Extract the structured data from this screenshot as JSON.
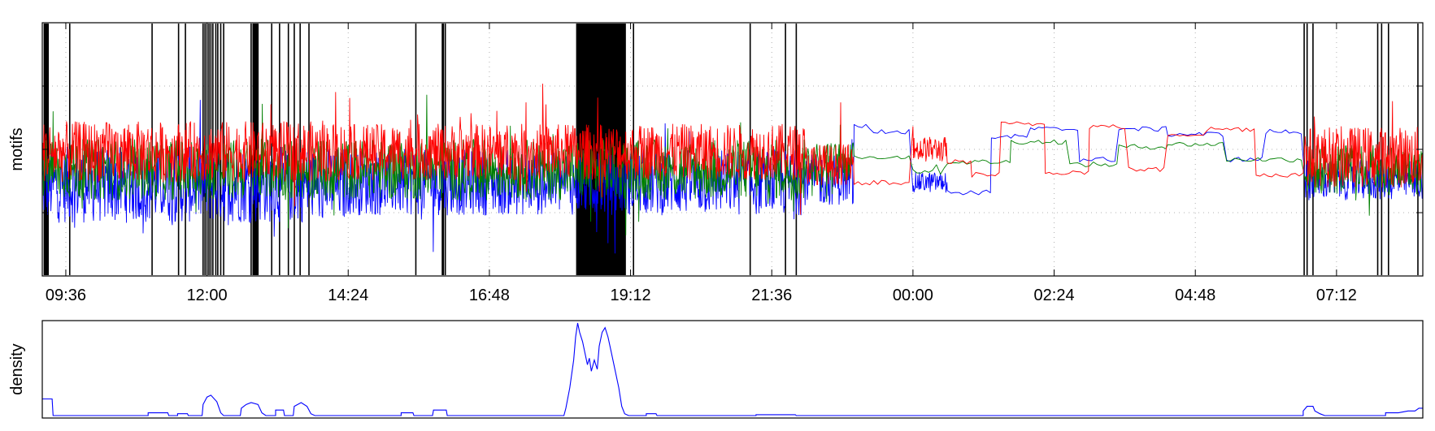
{
  "colors": {
    "frame": "#000000",
    "grid": "#b0b0b0",
    "blue": "#0000ff",
    "green": "#008000",
    "red": "#ff0000",
    "events": "#000000",
    "density": "#0000ff"
  },
  "chart_data": [
    {
      "type": "line",
      "ylabel": "motifs",
      "xlabel": "",
      "x_ticks": [
        "09:36",
        "12:00",
        "14:24",
        "16:48",
        "19:12",
        "21:36",
        "00:00",
        "02:24",
        "04:48",
        "07:12"
      ],
      "x_tick_minutes": [
        576,
        720,
        864,
        1008,
        1152,
        1296,
        1440,
        1584,
        1728,
        1872
      ],
      "xlim_minutes": [
        552,
        1960
      ],
      "ylim": [
        0,
        1
      ],
      "y_tick_fractions": [
        0.25,
        0.5,
        0.75
      ],
      "grid": true,
      "event_minutes": [
        554,
        555,
        556,
        557,
        558,
        580,
        664,
        691,
        698,
        716,
        718,
        720,
        722,
        724,
        726,
        729,
        731,
        734,
        737,
        765,
        767,
        768,
        769,
        770,
        771,
        772,
        786,
        794,
        803,
        809,
        815,
        824,
        933,
        960,
        961,
        963,
        963,
        1141,
        1145,
        1155,
        1274,
        1310,
        1321,
        1839,
        1842,
        1848,
        1914,
        1918,
        1925,
        1955
      ],
      "dense_event_range_minutes": [
        1097,
        1147
      ],
      "series": [
        {
          "color": "blue",
          "segments": [
            {
              "from": 552,
              "to": 860,
              "level": 0.36,
              "noise": 0.15
            },
            {
              "from": 860,
              "to": 1330,
              "level": 0.37,
              "noise": 0.13
            },
            {
              "from": 1330,
              "to": 1380,
              "level": 0.38,
              "noise": 0.1
            },
            {
              "from": 1380,
              "to": 1400,
              "level": 0.59,
              "noise": 0.01
            },
            {
              "from": 1400,
              "to": 1440,
              "level": 0.57,
              "noise": 0.01
            },
            {
              "from": 1440,
              "to": 1475,
              "level": 0.37,
              "noise": 0.04
            },
            {
              "from": 1475,
              "to": 1520,
              "level": 0.33,
              "noise": 0.01
            },
            {
              "from": 1520,
              "to": 1560,
              "level": 0.55,
              "noise": 0.01
            },
            {
              "from": 1560,
              "to": 1610,
              "level": 0.58,
              "noise": 0.01
            },
            {
              "from": 1610,
              "to": 1650,
              "level": 0.46,
              "noise": 0.01
            },
            {
              "from": 1650,
              "to": 1700,
              "level": 0.58,
              "noise": 0.01
            },
            {
              "from": 1700,
              "to": 1760,
              "level": 0.56,
              "noise": 0.01
            },
            {
              "from": 1760,
              "to": 1800,
              "level": 0.46,
              "noise": 0.01
            },
            {
              "from": 1800,
              "to": 1840,
              "level": 0.57,
              "noise": 0.01
            },
            {
              "from": 1840,
              "to": 1960,
              "level": 0.38,
              "noise": 0.08
            }
          ]
        },
        {
          "color": "green",
          "segments": [
            {
              "from": 552,
              "to": 1330,
              "level": 0.42,
              "noise": 0.12
            },
            {
              "from": 1330,
              "to": 1380,
              "level": 0.45,
              "noise": 0.08
            },
            {
              "from": 1380,
              "to": 1440,
              "level": 0.47,
              "noise": 0.01
            },
            {
              "from": 1440,
              "to": 1475,
              "level": 0.42,
              "noise": 0.02
            },
            {
              "from": 1475,
              "to": 1540,
              "level": 0.45,
              "noise": 0.01
            },
            {
              "from": 1540,
              "to": 1600,
              "level": 0.53,
              "noise": 0.01
            },
            {
              "from": 1600,
              "to": 1650,
              "level": 0.44,
              "noise": 0.01
            },
            {
              "from": 1650,
              "to": 1700,
              "level": 0.51,
              "noise": 0.01
            },
            {
              "from": 1700,
              "to": 1760,
              "level": 0.52,
              "noise": 0.01
            },
            {
              "from": 1760,
              "to": 1840,
              "level": 0.46,
              "noise": 0.01
            },
            {
              "from": 1840,
              "to": 1960,
              "level": 0.42,
              "noise": 0.1
            }
          ]
        },
        {
          "color": "red",
          "segments": [
            {
              "from": 552,
              "to": 860,
              "level": 0.49,
              "noise": 0.12
            },
            {
              "from": 860,
              "to": 1330,
              "level": 0.49,
              "noise": 0.11
            },
            {
              "from": 1330,
              "to": 1380,
              "level": 0.44,
              "noise": 0.08
            },
            {
              "from": 1380,
              "to": 1440,
              "level": 0.37,
              "noise": 0.01
            },
            {
              "from": 1440,
              "to": 1475,
              "level": 0.5,
              "noise": 0.05
            },
            {
              "from": 1475,
              "to": 1500,
              "level": 0.45,
              "noise": 0.01
            },
            {
              "from": 1500,
              "to": 1530,
              "level": 0.4,
              "noise": 0.01
            },
            {
              "from": 1530,
              "to": 1575,
              "level": 0.6,
              "noise": 0.01
            },
            {
              "from": 1575,
              "to": 1620,
              "level": 0.41,
              "noise": 0.01
            },
            {
              "from": 1620,
              "to": 1660,
              "level": 0.59,
              "noise": 0.01
            },
            {
              "from": 1660,
              "to": 1700,
              "level": 0.42,
              "noise": 0.01
            },
            {
              "from": 1700,
              "to": 1740,
              "level": 0.56,
              "noise": 0.01
            },
            {
              "from": 1740,
              "to": 1790,
              "level": 0.58,
              "noise": 0.01
            },
            {
              "from": 1790,
              "to": 1840,
              "level": 0.4,
              "noise": 0.01
            },
            {
              "from": 1840,
              "to": 1960,
              "level": 0.47,
              "noise": 0.12
            }
          ]
        }
      ]
    },
    {
      "type": "line",
      "ylabel": "density",
      "xlabel": "",
      "xlim_minutes": [
        552,
        1960
      ],
      "ylim": [
        0,
        1
      ],
      "series": [
        {
          "color": "density",
          "points_minutes": [
            552,
            0.18
          ],
          "points": [
            [
              552,
              0.18
            ],
            [
              562,
              0.18
            ],
            [
              563,
              0.0
            ],
            [
              660,
              0.0
            ],
            [
              660,
              0.03
            ],
            [
              680,
              0.03
            ],
            [
              681,
              0.0
            ],
            [
              690,
              0.0
            ],
            [
              690,
              0.02
            ],
            [
              700,
              0.02
            ],
            [
              701,
              0.0
            ],
            [
              715,
              0.0
            ],
            [
              716,
              0.12
            ],
            [
              720,
              0.2
            ],
            [
              724,
              0.22
            ],
            [
              730,
              0.15
            ],
            [
              734,
              0.03
            ],
            [
              737,
              0.0
            ],
            [
              754,
              0.0
            ],
            [
              755,
              0.08
            ],
            [
              760,
              0.12
            ],
            [
              765,
              0.14
            ],
            [
              772,
              0.12
            ],
            [
              776,
              0.03
            ],
            [
              780,
              0.0
            ],
            [
              790,
              0.0
            ],
            [
              790,
              0.06
            ],
            [
              798,
              0.06
            ],
            [
              799,
              0.0
            ],
            [
              808,
              0.0
            ],
            [
              809,
              0.1
            ],
            [
              816,
              0.14
            ],
            [
              822,
              0.1
            ],
            [
              826,
              0.02
            ],
            [
              830,
              0.0
            ],
            [
              918,
              0.0
            ],
            [
              918,
              0.03
            ],
            [
              930,
              0.03
            ],
            [
              931,
              0.0
            ],
            [
              950,
              0.0
            ],
            [
              951,
              0.06
            ],
            [
              964,
              0.06
            ],
            [
              965,
              0.0
            ],
            [
              1084,
              0.0
            ],
            [
              1086,
              0.08
            ],
            [
              1090,
              0.3
            ],
            [
              1094,
              0.6
            ],
            [
              1096,
              0.85
            ],
            [
              1098,
              1.0
            ],
            [
              1100,
              0.9
            ],
            [
              1103,
              0.8
            ],
            [
              1106,
              0.65
            ],
            [
              1108,
              0.55
            ],
            [
              1110,
              0.62
            ],
            [
              1112,
              0.48
            ],
            [
              1115,
              0.6
            ],
            [
              1118,
              0.5
            ],
            [
              1120,
              0.75
            ],
            [
              1123,
              0.9
            ],
            [
              1126,
              0.95
            ],
            [
              1129,
              0.85
            ],
            [
              1132,
              0.7
            ],
            [
              1136,
              0.5
            ],
            [
              1140,
              0.3
            ],
            [
              1143,
              0.1
            ],
            [
              1146,
              0.02
            ],
            [
              1150,
              0.0
            ],
            [
              1168,
              0.0
            ],
            [
              1168,
              0.02
            ],
            [
              1178,
              0.02
            ],
            [
              1179,
              0.0
            ],
            [
              1280,
              0.0
            ],
            [
              1280,
              0.01
            ],
            [
              1320,
              0.01
            ],
            [
              1321,
              0.0
            ],
            [
              1838,
              0.0
            ],
            [
              1838,
              0.05
            ],
            [
              1842,
              0.1
            ],
            [
              1848,
              0.1
            ],
            [
              1850,
              0.05
            ],
            [
              1855,
              0.02
            ],
            [
              1860,
              0.0
            ],
            [
              1922,
              0.0
            ],
            [
              1922,
              0.03
            ],
            [
              1935,
              0.03
            ],
            [
              1945,
              0.05
            ],
            [
              1952,
              0.05
            ],
            [
              1956,
              0.08
            ],
            [
              1960,
              0.08
            ]
          ]
        }
      ]
    }
  ]
}
